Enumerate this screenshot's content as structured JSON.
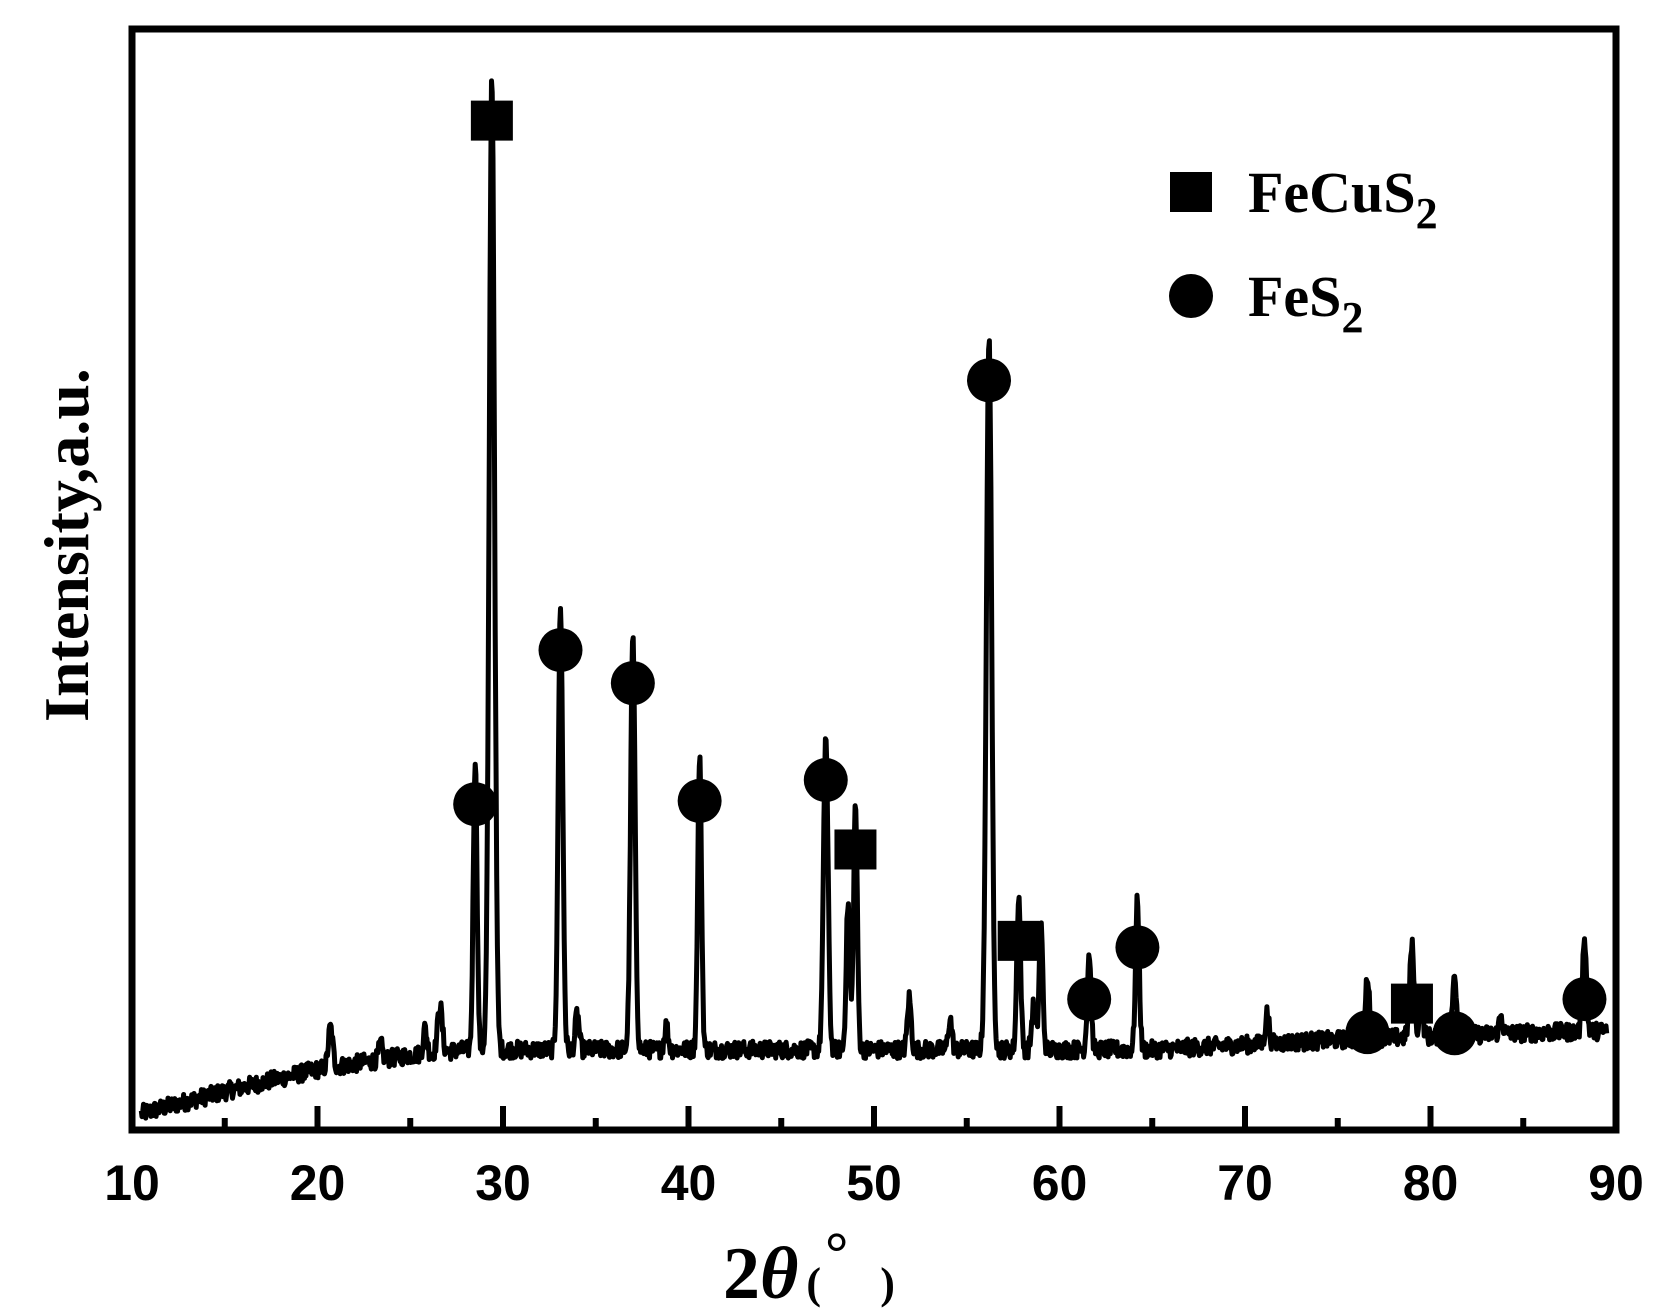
{
  "chart_data": {
    "type": "line",
    "xlabel": {
      "main": "2",
      "symbol": "θ",
      "open": "(",
      "degree": "°",
      "close": ")"
    },
    "ylabel": "Intensity,a.u.",
    "xlim": [
      10,
      90
    ],
    "xticks": [
      "10",
      "20",
      "30",
      "40",
      "50",
      "60",
      "70",
      "80",
      "90"
    ],
    "xticks_minor": [
      15,
      25,
      35,
      45,
      55,
      65,
      75,
      85
    ],
    "ylim": [
      0,
      100
    ],
    "grid": false,
    "legend": {
      "position": "top-right",
      "entries": [
        {
          "marker": "square",
          "label": "FeCuS",
          "sub": "2"
        },
        {
          "marker": "circle",
          "label": "FeS",
          "sub": "2"
        }
      ]
    },
    "series": [
      {
        "baseline": [
          [
            10.5,
            1.5
          ],
          [
            15,
            3.5
          ],
          [
            20,
            5.5
          ],
          [
            25,
            6.8
          ],
          [
            28,
            7.3
          ],
          [
            35,
            7.3
          ],
          [
            45,
            7.3
          ],
          [
            55,
            7.3
          ],
          [
            65,
            7.3
          ],
          [
            75,
            8.2
          ],
          [
            85,
            8.8
          ],
          [
            89.5,
            9
          ]
        ],
        "peaks": [
          [
            20.7,
            3.6,
            0.12
          ],
          [
            23.4,
            1.4,
            0.1
          ],
          [
            25.8,
            2.3,
            0.1
          ],
          [
            26.6,
            4.3,
            0.12
          ],
          [
            28.5,
            26.5,
            0.1
          ],
          [
            29.4,
            88.5,
            0.14
          ],
          [
            33.1,
            40.5,
            0.12
          ],
          [
            34.0,
            3.3,
            0.1
          ],
          [
            37.0,
            37.5,
            0.12
          ],
          [
            38.8,
            2.2,
            0.1
          ],
          [
            40.6,
            26.8,
            0.1
          ],
          [
            47.4,
            28.7,
            0.12
          ],
          [
            48.6,
            13.3,
            0.1
          ],
          [
            49.0,
            22.3,
            0.1
          ],
          [
            51.9,
            4.7,
            0.1
          ],
          [
            54.1,
            2.8,
            0.1
          ],
          [
            56.2,
            65.0,
            0.14
          ],
          [
            57.8,
            14.0,
            0.1
          ],
          [
            58.6,
            4.0,
            0.1
          ],
          [
            59.0,
            11.3,
            0.1
          ],
          [
            61.6,
            8.8,
            0.1
          ],
          [
            64.2,
            13.5,
            0.1
          ],
          [
            71.2,
            2.8,
            0.1
          ],
          [
            76.6,
            5.8,
            0.1
          ],
          [
            79.0,
            8.3,
            0.12
          ],
          [
            79.5,
            3.0,
            0.1
          ],
          [
            81.3,
            5.7,
            0.1
          ],
          [
            83.8,
            1.6,
            0.1
          ],
          [
            88.3,
            8.8,
            0.1
          ]
        ]
      }
    ],
    "annotations": [
      {
        "x": 29.4,
        "y": 88.5,
        "marker": "square"
      },
      {
        "x": 28.5,
        "y": 26.5,
        "marker": "circle"
      },
      {
        "x": 33.1,
        "y": 40.5,
        "marker": "circle"
      },
      {
        "x": 37.0,
        "y": 37.5,
        "marker": "circle"
      },
      {
        "x": 40.6,
        "y": 26.8,
        "marker": "circle"
      },
      {
        "x": 47.4,
        "y": 28.7,
        "marker": "circle"
      },
      {
        "x": 49.0,
        "y": 22.3,
        "marker": "square"
      },
      {
        "x": 56.2,
        "y": 65.0,
        "marker": "circle"
      },
      {
        "x": 57.8,
        "y": 14.0,
        "marker": "square"
      },
      {
        "x": 61.6,
        "y": 8.8,
        "marker": "circle"
      },
      {
        "x": 64.2,
        "y": 13.5,
        "marker": "circle"
      },
      {
        "x": 76.6,
        "y": 5.8,
        "marker": "circle"
      },
      {
        "x": 79.0,
        "y": 8.3,
        "marker": "square"
      },
      {
        "x": 81.3,
        "y": 5.7,
        "marker": "circle"
      },
      {
        "x": 88.3,
        "y": 8.8,
        "marker": "circle"
      }
    ]
  }
}
